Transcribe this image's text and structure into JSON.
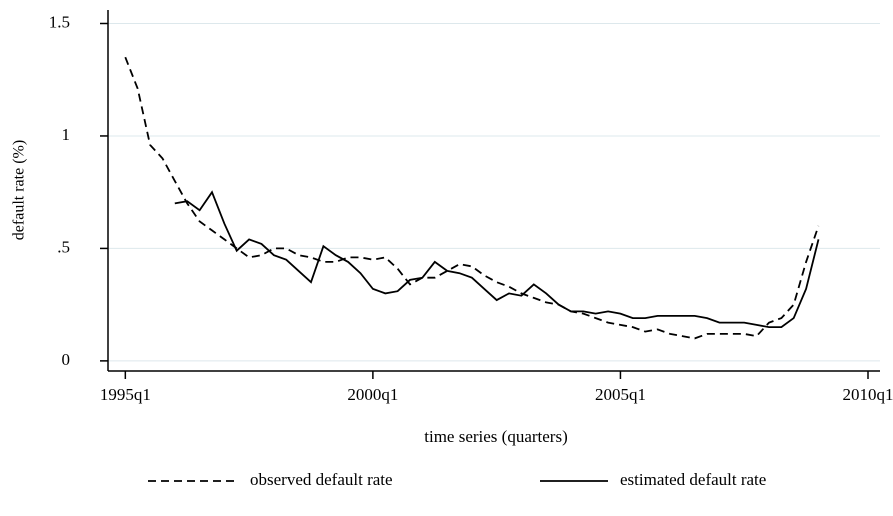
{
  "chart_data": {
    "type": "line",
    "y_label": "default rate (%)",
    "x_label": "time series  (quarters)",
    "x": [
      140,
      141,
      142,
      143,
      144,
      145,
      146,
      147,
      148,
      149,
      150,
      151,
      152,
      153,
      154,
      155,
      156,
      157,
      158,
      159,
      160,
      161,
      162,
      163,
      164,
      165,
      166,
      167,
      168,
      169,
      170,
      171,
      172,
      173,
      174,
      175,
      176,
      177,
      178,
      179,
      180,
      181,
      182,
      183,
      184,
      185,
      186,
      187,
      188,
      189,
      190,
      191,
      192,
      193,
      194,
      195,
      196
    ],
    "series": [
      {
        "name": "observed default rate",
        "color": "#000000",
        "dash": "8 5",
        "values": [
          1.35,
          1.21,
          0.96,
          0.9,
          0.8,
          0.7,
          0.62,
          0.58,
          0.54,
          0.5,
          0.46,
          0.47,
          0.5,
          0.5,
          0.47,
          0.46,
          0.44,
          0.44,
          0.46,
          0.46,
          0.45,
          0.46,
          0.41,
          0.34,
          0.37,
          0.37,
          0.4,
          0.43,
          0.42,
          0.38,
          0.35,
          0.33,
          0.3,
          0.28,
          0.26,
          0.25,
          0.22,
          0.21,
          0.19,
          0.17,
          0.16,
          0.15,
          0.13,
          0.14,
          0.12,
          0.11,
          0.1,
          0.12,
          0.12,
          0.12,
          0.12,
          0.11,
          0.17,
          0.19,
          0.25,
          0.44,
          0.6
        ]
      },
      {
        "name": "estimated default rate",
        "color": "#000000",
        "values": [
          null,
          null,
          null,
          null,
          0.7,
          0.71,
          0.67,
          0.75,
          0.61,
          0.49,
          0.54,
          0.52,
          0.47,
          0.45,
          0.4,
          0.35,
          0.51,
          0.47,
          0.44,
          0.39,
          0.32,
          0.3,
          0.31,
          0.36,
          0.37,
          0.44,
          0.4,
          0.39,
          0.37,
          0.32,
          0.27,
          0.3,
          0.29,
          0.34,
          0.3,
          0.25,
          0.22,
          0.22,
          0.21,
          0.22,
          0.21,
          0.19,
          0.19,
          0.2,
          0.2,
          0.2,
          0.2,
          0.19,
          0.17,
          0.17,
          0.17,
          0.16,
          0.15,
          0.15,
          0.19,
          0.32,
          0.54
        ]
      }
    ],
    "xlim": [
      138.6,
      200
    ],
    "xticks": [
      {
        "value": 140,
        "label": "1995q1"
      },
      {
        "value": 160,
        "label": "2000q1"
      },
      {
        "value": 180,
        "label": "2005q1"
      },
      {
        "value": 200,
        "label": "2010q1"
      }
    ],
    "ylim": [
      -0.045,
      1.56
    ],
    "yticks": [
      0,
      {
        "value": 0.5,
        "label": ".5"
      },
      1,
      1.5
    ],
    "grid": true,
    "legend": "bottom"
  }
}
